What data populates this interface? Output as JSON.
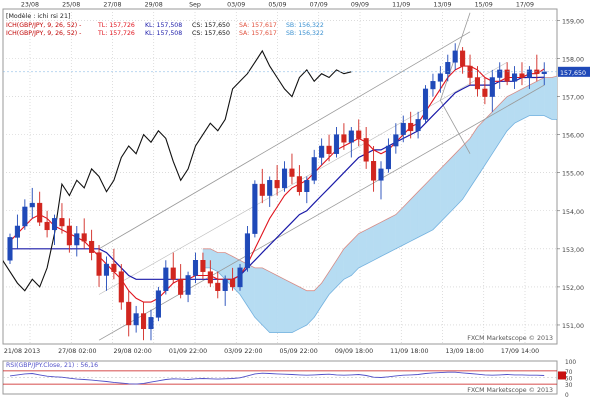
{
  "chart_data": {
    "type": "candlestick",
    "header_label": "[Modèle : ichi rsi 21]",
    "legend_rows": [
      {
        "prefix": "ICH(GBP/JPY, 9, 26, 52) -",
        "items": [
          {
            "text": "TL: 157,726",
            "color": "#e0141e"
          },
          {
            "text": "KL: 157,508",
            "color": "#1a1aa8"
          },
          {
            "text": "CS: 157,650",
            "color": "#111111"
          },
          {
            "text": "SA: 157,617",
            "color": "#e0503c"
          },
          {
            "text": "SB: 156,322",
            "color": "#3a90d0"
          }
        ]
      },
      {
        "prefix": "ICH(GBP/JPY, 9, 26, 52) -",
        "items": [
          {
            "text": "TL: 157,726",
            "color": "#e0141e"
          },
          {
            "text": "KL: 157,508",
            "color": "#1a1aa8"
          },
          {
            "text": "CS: 157,650",
            "color": "#111111"
          },
          {
            "text": "SA: 157,617",
            "color": "#e0503c"
          },
          {
            "text": "SB: 156,322",
            "color": "#3a90d0"
          }
        ]
      }
    ],
    "top_dates": [
      "23/08",
      "25/08",
      "27/08",
      "29/08",
      "Sep",
      "03/09",
      "05/09",
      "07/09",
      "09/09",
      "11/09",
      "13/09",
      "15/09",
      "17/09"
    ],
    "bottom_dates": [
      "21/08 2013",
      "27/08 02:00",
      "29/08 02:00",
      "01/09 22:00",
      "03/09 22:00",
      "05/09 22:00",
      "09/09 18:00",
      "11/09 18:00",
      "13/09 18:00",
      "17/09 14:00"
    ],
    "y_ticks": [
      "159,00",
      "158,00",
      "157,00",
      "156,00",
      "155,00",
      "154,00",
      "153,00",
      "152,00",
      "151,00"
    ],
    "ylim": [
      150.5,
      159.3
    ],
    "last_price": "157,650",
    "watermark": "FXCM Marketscope © 2013",
    "candles": [
      [
        152.7,
        153.4,
        152.6,
        153.3
      ],
      [
        153.3,
        153.9,
        153.0,
        153.6
      ],
      [
        153.6,
        154.3,
        153.5,
        154.1
      ],
      [
        154.1,
        154.6,
        153.8,
        154.2
      ],
      [
        154.2,
        154.5,
        153.6,
        153.7
      ],
      [
        153.7,
        154.0,
        153.3,
        153.5
      ],
      [
        153.5,
        153.9,
        153.1,
        153.8
      ],
      [
        153.8,
        154.2,
        153.4,
        153.6
      ],
      [
        153.6,
        153.8,
        152.9,
        153.1
      ],
      [
        153.1,
        153.6,
        152.8,
        153.4
      ],
      [
        153.4,
        153.8,
        153.0,
        153.2
      ],
      [
        153.2,
        153.5,
        152.7,
        152.9
      ],
      [
        152.9,
        153.1,
        152.0,
        152.3
      ],
      [
        152.3,
        152.8,
        151.9,
        152.6
      ],
      [
        152.6,
        153.0,
        152.2,
        152.4
      ],
      [
        152.4,
        152.6,
        151.4,
        151.6
      ],
      [
        151.6,
        151.9,
        150.7,
        151.0
      ],
      [
        151.0,
        151.5,
        150.8,
        151.3
      ],
      [
        151.3,
        151.6,
        150.6,
        150.9
      ],
      [
        150.9,
        151.4,
        150.6,
        151.2
      ],
      [
        151.2,
        152.0,
        151.1,
        151.9
      ],
      [
        151.9,
        152.7,
        151.8,
        152.5
      ],
      [
        152.5,
        152.9,
        152.1,
        152.2
      ],
      [
        152.2,
        152.6,
        151.7,
        151.8
      ],
      [
        151.8,
        152.4,
        151.6,
        152.3
      ],
      [
        152.3,
        152.9,
        152.1,
        152.7
      ],
      [
        152.7,
        152.9,
        152.2,
        152.4
      ],
      [
        152.4,
        152.7,
        152.0,
        152.1
      ],
      [
        152.1,
        152.4,
        151.7,
        151.9
      ],
      [
        151.9,
        152.3,
        151.5,
        152.2
      ],
      [
        152.2,
        152.5,
        151.9,
        152.0
      ],
      [
        152.0,
        152.6,
        151.9,
        152.5
      ],
      [
        152.5,
        153.6,
        152.4,
        153.4
      ],
      [
        153.4,
        154.8,
        153.3,
        154.7
      ],
      [
        154.7,
        155.1,
        154.2,
        154.4
      ],
      [
        154.4,
        154.9,
        154.1,
        154.8
      ],
      [
        154.8,
        155.2,
        154.4,
        154.6
      ],
      [
        154.6,
        155.3,
        154.5,
        155.1
      ],
      [
        155.1,
        155.5,
        154.7,
        154.9
      ],
      [
        154.9,
        155.2,
        154.4,
        154.5
      ],
      [
        154.5,
        154.9,
        154.2,
        154.8
      ],
      [
        154.8,
        155.6,
        154.7,
        155.4
      ],
      [
        155.4,
        155.9,
        155.2,
        155.7
      ],
      [
        155.7,
        156.0,
        155.3,
        155.5
      ],
      [
        155.5,
        156.2,
        155.4,
        156.0
      ],
      [
        156.0,
        156.3,
        155.6,
        155.8
      ],
      [
        155.8,
        156.2,
        155.4,
        156.1
      ],
      [
        156.1,
        156.4,
        155.7,
        155.9
      ],
      [
        155.9,
        156.2,
        155.1,
        155.3
      ],
      [
        155.3,
        155.7,
        154.5,
        154.8
      ],
      [
        154.8,
        155.3,
        154.3,
        155.1
      ],
      [
        155.1,
        155.9,
        155.0,
        155.7
      ],
      [
        155.7,
        156.3,
        155.5,
        156.0
      ],
      [
        156.0,
        156.5,
        155.8,
        156.3
      ],
      [
        156.3,
        156.6,
        155.9,
        156.1
      ],
      [
        156.1,
        156.6,
        155.9,
        156.4
      ],
      [
        156.4,
        157.3,
        156.3,
        157.2
      ],
      [
        157.2,
        157.6,
        157.0,
        157.4
      ],
      [
        157.4,
        157.8,
        157.1,
        157.6
      ],
      [
        157.6,
        158.1,
        157.4,
        157.9
      ],
      [
        157.9,
        158.4,
        157.7,
        158.2
      ],
      [
        158.2,
        158.3,
        157.6,
        157.8
      ],
      [
        157.8,
        158.1,
        157.3,
        157.5
      ],
      [
        157.5,
        157.8,
        157.0,
        157.2
      ],
      [
        157.2,
        157.5,
        156.8,
        157.0
      ],
      [
        157.0,
        157.7,
        156.6,
        157.5
      ],
      [
        157.5,
        157.9,
        157.2,
        157.7
      ],
      [
        157.7,
        157.9,
        157.3,
        157.4
      ],
      [
        157.4,
        157.8,
        157.2,
        157.6
      ],
      [
        157.6,
        157.9,
        157.3,
        157.5
      ],
      [
        157.5,
        157.8,
        157.2,
        157.7
      ],
      [
        157.7,
        158.1,
        157.4,
        157.6
      ],
      [
        157.6,
        157.9,
        157.3,
        157.65
      ]
    ],
    "tenkan_sen": [
      153.2,
      153.4,
      153.6,
      153.8,
      153.9,
      153.8,
      153.6,
      153.5,
      153.4,
      153.3,
      153.2,
      153.0,
      152.8,
      152.6,
      152.4,
      152.2,
      151.9,
      151.7,
      151.6,
      151.6,
      151.7,
      151.9,
      152.1,
      152.2,
      152.2,
      152.3,
      152.3,
      152.3,
      152.2,
      152.2,
      152.2,
      152.3,
      152.6,
      153.0,
      153.4,
      153.8,
      154.1,
      154.4,
      154.6,
      154.7,
      154.8,
      155.0,
      155.2,
      155.4,
      155.6,
      155.7,
      155.8,
      155.9,
      155.8,
      155.6,
      155.5,
      155.6,
      155.8,
      156.0,
      156.2,
      156.3,
      156.6,
      156.9,
      157.2,
      157.5,
      157.7,
      157.8,
      157.8,
      157.7,
      157.5,
      157.4,
      157.4,
      157.5,
      157.5,
      157.5,
      157.6,
      157.6,
      157.726
    ],
    "kijun_sen": [
      153.0,
      153.0,
      153.0,
      153.0,
      153.0,
      153.0,
      153.0,
      153.0,
      153.0,
      153.0,
      153.0,
      153.0,
      153.0,
      152.9,
      152.7,
      152.5,
      152.3,
      152.2,
      152.2,
      152.2,
      152.2,
      152.2,
      152.2,
      152.2,
      152.2,
      152.2,
      152.2,
      152.2,
      152.2,
      152.2,
      152.2,
      152.3,
      152.5,
      152.7,
      152.9,
      153.1,
      153.3,
      153.5,
      153.7,
      153.9,
      154.0,
      154.2,
      154.4,
      154.6,
      154.8,
      155.0,
      155.2,
      155.4,
      155.5,
      155.6,
      155.6,
      155.7,
      155.8,
      155.9,
      156.0,
      156.1,
      156.3,
      156.5,
      156.7,
      156.9,
      157.1,
      157.2,
      157.3,
      157.3,
      157.3,
      157.3,
      157.4,
      157.4,
      157.4,
      157.5,
      157.5,
      157.5,
      157.508
    ],
    "chikou_span": [
      151.0,
      151.3,
      150.9,
      151.2,
      151.9,
      152.5,
      152.2,
      151.8,
      152.3,
      152.7,
      152.4,
      152.1,
      151.9,
      152.2,
      152.0,
      152.5,
      153.4,
      154.7,
      154.4,
      154.8,
      154.6,
      155.1,
      154.9,
      154.5,
      154.8,
      155.4,
      155.7,
      155.5,
      156.0,
      155.8,
      156.1,
      155.9,
      155.3,
      154.8,
      155.1,
      155.7,
      156.0,
      156.3,
      156.1,
      156.4,
      157.2,
      157.4,
      157.6,
      157.9,
      158.2,
      157.8,
      157.5,
      157.2,
      157.0,
      157.5,
      157.7,
      157.4,
      157.6,
      157.5,
      157.7,
      157.6,
      157.65
    ],
    "senkou_a": [
      153.0,
      153.0,
      152.9,
      152.9,
      152.8,
      152.7,
      152.6,
      152.5,
      152.5,
      152.4,
      152.3,
      152.2,
      152.1,
      152.0,
      151.9,
      151.9,
      152.1,
      152.4,
      152.7,
      153.0,
      153.2,
      153.4,
      153.5,
      153.6,
      153.7,
      153.8,
      153.9,
      154.1,
      154.3,
      154.5,
      154.7,
      154.9,
      155.1,
      155.3,
      155.5,
      155.7,
      155.9,
      156.2,
      156.4,
      156.6,
      156.8,
      157.0,
      157.1,
      157.2,
      157.3,
      157.4,
      157.5,
      157.5,
      157.55,
      157.6,
      157.6,
      157.6,
      157.6,
      157.6,
      157.6,
      157.6,
      157.6,
      157.6,
      157.6,
      157.6,
      157.6,
      157.6,
      157.6,
      157.6,
      157.6,
      157.6,
      157.6,
      157.617
    ],
    "senkou_b": [
      152.5,
      152.5,
      152.4,
      152.2,
      152.0,
      151.8,
      151.5,
      151.2,
      151.0,
      150.8,
      150.8,
      150.8,
      150.8,
      150.9,
      151.0,
      151.2,
      151.5,
      151.8,
      152.0,
      152.2,
      152.3,
      152.5,
      152.6,
      152.7,
      152.8,
      152.9,
      153.0,
      153.1,
      153.2,
      153.3,
      153.4,
      153.5,
      153.7,
      153.9,
      154.1,
      154.3,
      154.6,
      154.9,
      155.2,
      155.5,
      155.8,
      156.1,
      156.3,
      156.4,
      156.5,
      156.5,
      156.5,
      156.4,
      156.4,
      156.4,
      156.4,
      156.4,
      156.4,
      156.4,
      156.4,
      156.4,
      156.4,
      156.4,
      156.3,
      156.3,
      156.3,
      156.3,
      156.3,
      156.322
    ],
    "rsi": {
      "label": "RSI(GBP/JPY.Close, 21) : 56,16",
      "ticks": [
        "100",
        "70",
        "50",
        "30",
        "0"
      ],
      "values": [
        55,
        58,
        61,
        62,
        58,
        54,
        52,
        51,
        48,
        45,
        44,
        42,
        40,
        38,
        35,
        33,
        31,
        30,
        32,
        36,
        40,
        44,
        46,
        45,
        44,
        46,
        47,
        46,
        45,
        46,
        47,
        49,
        55,
        61,
        63,
        62,
        61,
        60,
        59,
        58,
        57,
        58,
        59,
        60,
        58,
        57,
        58,
        59,
        56,
        51,
        50,
        52,
        55,
        57,
        58,
        59,
        62,
        64,
        65,
        66,
        66,
        64,
        62,
        60,
        58,
        57,
        58,
        59,
        58,
        58,
        57,
        57,
        56.16
      ]
    }
  }
}
